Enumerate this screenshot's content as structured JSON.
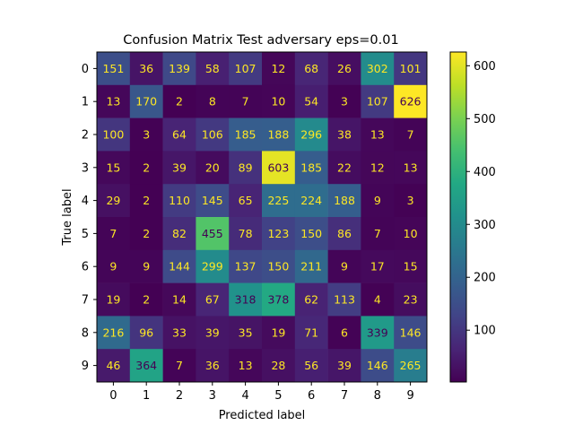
{
  "chart_data": {
    "type": "heatmap",
    "title": "Confusion Matrix Test adversary eps=0.01",
    "xlabel": "Predicted label",
    "ylabel": "True label",
    "x_categories": [
      "0",
      "1",
      "2",
      "3",
      "4",
      "5",
      "6",
      "7",
      "8",
      "9"
    ],
    "y_categories": [
      "0",
      "1",
      "2",
      "3",
      "4",
      "5",
      "6",
      "7",
      "8",
      "9"
    ],
    "matrix": [
      [
        151,
        36,
        139,
        58,
        107,
        12,
        68,
        26,
        302,
        101
      ],
      [
        13,
        170,
        2,
        8,
        7,
        10,
        54,
        3,
        107,
        626
      ],
      [
        100,
        3,
        64,
        106,
        185,
        188,
        296,
        38,
        13,
        7
      ],
      [
        15,
        2,
        39,
        20,
        89,
        603,
        185,
        22,
        12,
        13
      ],
      [
        29,
        2,
        110,
        145,
        65,
        225,
        224,
        188,
        9,
        3
      ],
      [
        7,
        2,
        82,
        455,
        78,
        123,
        150,
        86,
        7,
        10
      ],
      [
        9,
        9,
        144,
        299,
        137,
        150,
        211,
        9,
        17,
        15
      ],
      [
        19,
        2,
        14,
        67,
        318,
        378,
        62,
        113,
        4,
        23
      ],
      [
        216,
        96,
        33,
        39,
        35,
        19,
        71,
        6,
        339,
        146
      ],
      [
        46,
        364,
        7,
        36,
        13,
        28,
        56,
        39,
        146,
        265
      ]
    ],
    "colormap": "viridis",
    "vmin": 2,
    "vmax": 626,
    "colorbar_ticks": [
      100,
      200,
      300,
      400,
      500,
      600
    ],
    "text_color_light": "#fde725",
    "text_color_dark": "#440154"
  }
}
